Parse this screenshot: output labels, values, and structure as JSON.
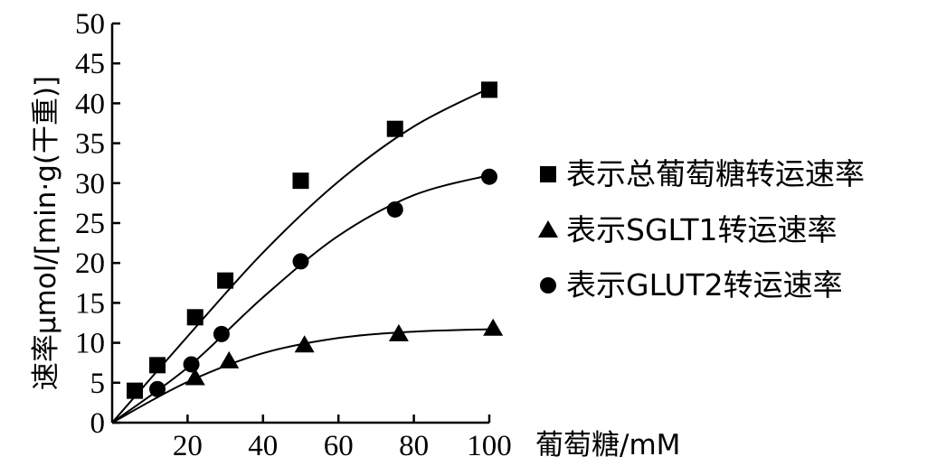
{
  "chart_data": {
    "type": "scatter",
    "xlabel": "葡萄糖/mM",
    "ylabel": "速率μmol/[min·g(干重)]",
    "xlim": [
      0,
      100
    ],
    "ylim": [
      0,
      50
    ],
    "x_ticks": [
      "20",
      "40",
      "60",
      "80",
      "100"
    ],
    "y_ticks": [
      "0",
      "5",
      "10",
      "15",
      "20",
      "25",
      "30",
      "35",
      "40",
      "45",
      "50"
    ],
    "grid": false,
    "legend_position": "right",
    "series": [
      {
        "name": "表示总葡萄糖转运速率",
        "marker": "square",
        "points": [
          [
            6,
            4
          ],
          [
            12,
            7.2
          ],
          [
            22,
            13.2
          ],
          [
            30,
            17.8
          ],
          [
            50,
            30.3
          ],
          [
            75,
            36.8
          ],
          [
            100,
            41.7
          ]
        ],
        "fit": [
          [
            0,
            0
          ],
          [
            20,
            10.8
          ],
          [
            40,
            21.3
          ],
          [
            60,
            30.2
          ],
          [
            80,
            37.1
          ],
          [
            100,
            41.9
          ]
        ]
      },
      {
        "name": "表示SGLT1转运速率",
        "marker": "triangle",
        "points": [
          [
            22,
            5.6
          ],
          [
            31,
            7.7
          ],
          [
            51,
            9.7
          ],
          [
            76,
            11.1
          ],
          [
            101,
            11.8
          ]
        ],
        "fit": [
          [
            0,
            0
          ],
          [
            20,
            5.1
          ],
          [
            40,
            8.7
          ],
          [
            60,
            10.6
          ],
          [
            80,
            11.4
          ],
          [
            100,
            11.7
          ]
        ]
      },
      {
        "name": "表示GLUT2转运速率",
        "marker": "circle",
        "points": [
          [
            12,
            4.2
          ],
          [
            21,
            7.3
          ],
          [
            29,
            11.1
          ],
          [
            50,
            20.2
          ],
          [
            75,
            26.7
          ],
          [
            100,
            30.8
          ]
        ],
        "fit": [
          [
            0,
            0
          ],
          [
            20,
            6.9
          ],
          [
            40,
            15.7
          ],
          [
            60,
            23.4
          ],
          [
            80,
            28.5
          ],
          [
            100,
            31
          ]
        ]
      }
    ]
  }
}
